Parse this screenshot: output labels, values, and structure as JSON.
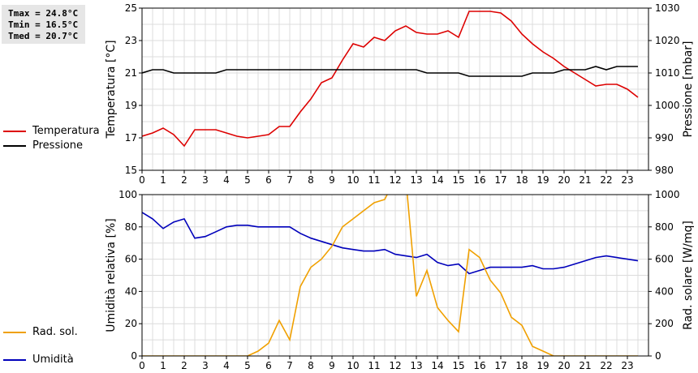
{
  "stats": {
    "tmax": "Tmax = 24.8°C",
    "tmin": "Tmin = 16.5°C",
    "tmed": "Tmed = 20.7°C"
  },
  "legend_top": [
    {
      "label": "Temperatura",
      "color": "#dd0000"
    },
    {
      "label": "Pressione",
      "color": "#000000"
    }
  ],
  "legend_bottom": [
    {
      "label": "Umidità",
      "color": "#0000bb"
    },
    {
      "label": "Rad. sol.",
      "color": "#f0a000"
    }
  ],
  "chart_data": [
    {
      "type": "line",
      "ylabel_left": "Temperatura [°C]",
      "ylabel_right": "Pressione [mbar]",
      "x_ticks": [
        "0",
        "1",
        "2",
        "3",
        "4",
        "5",
        "6",
        "7",
        "8",
        "9",
        "10",
        "11",
        "12",
        "13",
        "14",
        "15",
        "16",
        "17",
        "18",
        "19",
        "20",
        "21",
        "22",
        "23"
      ],
      "xlim": [
        0,
        24
      ],
      "ylim_left": [
        15,
        25
      ],
      "yticks_left": [
        "15",
        "17",
        "19",
        "21",
        "23",
        "25"
      ],
      "ylim_right": [
        980,
        1030
      ],
      "yticks_right": [
        "980",
        "990",
        "1000",
        "1010",
        "1020",
        "1030"
      ],
      "grid": true,
      "series": [
        {
          "name": "Temperatura",
          "axis": "left",
          "color": "#dd0000",
          "x": [
            0,
            0.5,
            1,
            1.5,
            2,
            2.5,
            3,
            3.5,
            4,
            4.5,
            5,
            5.5,
            6,
            6.5,
            7,
            7.5,
            8,
            8.5,
            9,
            9.5,
            10,
            10.5,
            11,
            11.5,
            12,
            12.5,
            13,
            13.5,
            14,
            14.5,
            15,
            15.5,
            16,
            16.5,
            17,
            17.5,
            18,
            18.5,
            19,
            19.5,
            20,
            20.5,
            21,
            21.5,
            22,
            22.5,
            23,
            23.5
          ],
          "values": [
            17.1,
            17.3,
            17.6,
            17.2,
            16.5,
            17.5,
            17.5,
            17.5,
            17.3,
            17.1,
            17.0,
            17.1,
            17.2,
            17.7,
            17.7,
            18.6,
            19.4,
            20.4,
            20.7,
            21.8,
            22.8,
            22.6,
            23.2,
            23.0,
            23.6,
            23.9,
            23.5,
            23.4,
            23.4,
            23.6,
            23.2,
            24.8,
            24.8,
            24.8,
            24.7,
            24.2,
            23.4,
            22.8,
            22.3,
            21.9,
            21.4,
            21.0,
            20.6,
            20.2,
            20.3,
            20.3,
            20.0,
            19.5
          ]
        },
        {
          "name": "Pressione",
          "axis": "right",
          "color": "#000000",
          "x": [
            0,
            0.5,
            1,
            1.5,
            2,
            2.5,
            3,
            3.5,
            4,
            4.5,
            5,
            5.5,
            6,
            6.5,
            7,
            7.5,
            8,
            8.5,
            9,
            9.5,
            10,
            10.5,
            11,
            11.5,
            12,
            12.5,
            13,
            13.5,
            14,
            14.5,
            15,
            15.5,
            16,
            16.5,
            17,
            17.5,
            18,
            18.5,
            19,
            19.5,
            20,
            20.5,
            21,
            21.5,
            22,
            22.5,
            23,
            23.5
          ],
          "values": [
            1010,
            1011,
            1011,
            1010,
            1010,
            1010,
            1010,
            1010,
            1011,
            1011,
            1011,
            1011,
            1011,
            1011,
            1011,
            1011,
            1011,
            1011,
            1011,
            1011,
            1011,
            1011,
            1011,
            1011,
            1011,
            1011,
            1011,
            1010,
            1010,
            1010,
            1010,
            1009,
            1009,
            1009,
            1009,
            1009,
            1009,
            1010,
            1010,
            1010,
            1011,
            1011,
            1011,
            1012,
            1011,
            1012,
            1012,
            1012
          ]
        }
      ]
    },
    {
      "type": "line",
      "ylabel_left": "Umidità relativa [%]",
      "ylabel_right": "Rad. solare [W/mq]",
      "x_ticks": [
        "0",
        "1",
        "2",
        "3",
        "4",
        "5",
        "6",
        "7",
        "8",
        "9",
        "10",
        "11",
        "12",
        "13",
        "14",
        "15",
        "16",
        "17",
        "18",
        "19",
        "20",
        "21",
        "22",
        "23"
      ],
      "xlim": [
        0,
        24
      ],
      "ylim_left": [
        0,
        100
      ],
      "yticks_left": [
        "0",
        "20",
        "40",
        "60",
        "80",
        "100"
      ],
      "ylim_right": [
        0,
        1000
      ],
      "yticks_right": [
        "0",
        "200",
        "400",
        "600",
        "800",
        "1000"
      ],
      "grid": true,
      "series": [
        {
          "name": "Umidità",
          "axis": "left",
          "color": "#0000bb",
          "x": [
            0,
            0.5,
            1,
            1.5,
            2,
            2.5,
            3,
            3.5,
            4,
            4.5,
            5,
            5.5,
            6,
            6.5,
            7,
            7.5,
            8,
            8.5,
            9,
            9.5,
            10,
            10.5,
            11,
            11.5,
            12,
            12.5,
            13,
            13.5,
            14,
            14.5,
            15,
            15.5,
            16,
            16.5,
            17,
            17.5,
            18,
            18.5,
            19,
            19.5,
            20,
            20.5,
            21,
            21.5,
            22,
            22.5,
            23,
            23.5
          ],
          "values": [
            89,
            85,
            79,
            83,
            85,
            73,
            74,
            77,
            80,
            81,
            81,
            80,
            80,
            80,
            80,
            76,
            73,
            71,
            69,
            67,
            66,
            65,
            65,
            66,
            63,
            62,
            61,
            63,
            58,
            56,
            57,
            51,
            53,
            55,
            55,
            55,
            55,
            56,
            54,
            54,
            55,
            57,
            59,
            61,
            62,
            61,
            60,
            59
          ]
        },
        {
          "name": "Rad. sol.",
          "axis": "right",
          "color": "#f0a000",
          "x": [
            0,
            0.5,
            1,
            1.5,
            2,
            2.5,
            3,
            3.5,
            4,
            4.5,
            5,
            5.5,
            6,
            6.5,
            7,
            7.5,
            8,
            8.5,
            9,
            9.5,
            10,
            10.5,
            11,
            11.5,
            12,
            12.5,
            13,
            13.5,
            14,
            14.5,
            15,
            15.5,
            16,
            16.5,
            17,
            17.5,
            18,
            18.5,
            19,
            19.5,
            20,
            20.5,
            21,
            21.5,
            22,
            22.5,
            23,
            23.5
          ],
          "values": [
            0,
            0,
            0,
            0,
            0,
            0,
            0,
            0,
            0,
            0,
            0,
            30,
            80,
            220,
            100,
            430,
            550,
            600,
            680,
            800,
            850,
            900,
            950,
            970,
            1100,
            1100,
            370,
            530,
            300,
            220,
            150,
            660,
            610,
            470,
            390,
            240,
            190,
            60,
            30,
            0,
            0,
            0,
            0,
            0,
            0,
            0,
            0,
            0
          ]
        }
      ]
    }
  ]
}
